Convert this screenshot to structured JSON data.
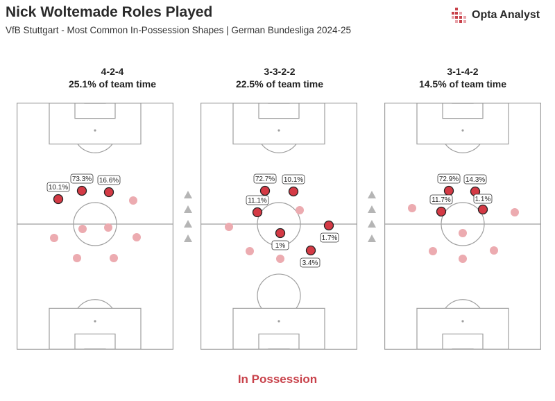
{
  "header": {
    "title": "Nick Woltemade Roles Played",
    "subtitle": "VfB Stuttgart - Most Common In-Possession Shapes | German Bundesliga 2024-25"
  },
  "brand": {
    "name": "Opta Analyst",
    "icon": "opta-grid-logo-icon"
  },
  "footer": {
    "label": "In Possession"
  },
  "colors": {
    "highlight": "#d43a45",
    "faded": "#ecabb0",
    "line": "#9e9e9e",
    "arrow": "#b5b5b5",
    "accent_text": "#c8414a"
  },
  "shapes": [
    {
      "formation": "4-2-4",
      "share": "25.1% of team time",
      "roles": [
        {
          "label": "10.1%"
        },
        {
          "label": "73.3%"
        },
        {
          "label": "16.6%"
        }
      ]
    },
    {
      "formation": "3-3-2-2",
      "share": "22.5% of team time",
      "roles": [
        {
          "label": "72.7%"
        },
        {
          "label": "10.1%"
        },
        {
          "label": "11.1%"
        },
        {
          "label": "1%"
        },
        {
          "label": "1.7%"
        },
        {
          "label": "3.4%"
        }
      ]
    },
    {
      "formation": "3-1-4-2",
      "share": "14.5% of team time",
      "roles": [
        {
          "label": "72.9%"
        },
        {
          "label": "14.3%"
        },
        {
          "label": "11.7%"
        },
        {
          "label": "1.1%"
        }
      ]
    }
  ]
}
